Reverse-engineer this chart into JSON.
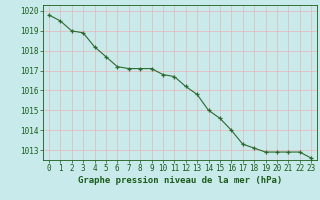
{
  "x": [
    0,
    1,
    2,
    3,
    4,
    5,
    6,
    7,
    8,
    9,
    10,
    11,
    12,
    13,
    14,
    15,
    16,
    17,
    18,
    19,
    20,
    21,
    22,
    23
  ],
  "y": [
    1019.8,
    1019.5,
    1019.0,
    1018.9,
    1018.2,
    1017.7,
    1017.2,
    1017.1,
    1017.1,
    1017.1,
    1016.8,
    1016.7,
    1016.2,
    1015.8,
    1015.0,
    1014.6,
    1014.0,
    1013.3,
    1013.1,
    1012.9,
    1012.9,
    1012.9,
    1012.9,
    1012.6
  ],
  "line_color": "#2d6a2d",
  "marker": "+",
  "marker_color": "#2d6a2d",
  "bg_color": "#c8eaea",
  "grid_color": "#e8b4b4",
  "axis_label_color": "#1a5c1a",
  "tick_label_color": "#1a5c1a",
  "xlabel": "Graphe pression niveau de la mer (hPa)",
  "ylim": [
    1012.5,
    1020.3
  ],
  "xlim": [
    -0.5,
    23.5
  ],
  "yticks": [
    1013,
    1014,
    1015,
    1016,
    1017,
    1018,
    1019,
    1020
  ],
  "xticks": [
    0,
    1,
    2,
    3,
    4,
    5,
    6,
    7,
    8,
    9,
    10,
    11,
    12,
    13,
    14,
    15,
    16,
    17,
    18,
    19,
    20,
    21,
    22,
    23
  ],
  "tick_fontsize": 5.5,
  "xlabel_fontsize": 6.5,
  "line_width": 0.8,
  "marker_size": 3.5,
  "fig_width": 3.2,
  "fig_height": 2.0,
  "dpi": 100
}
